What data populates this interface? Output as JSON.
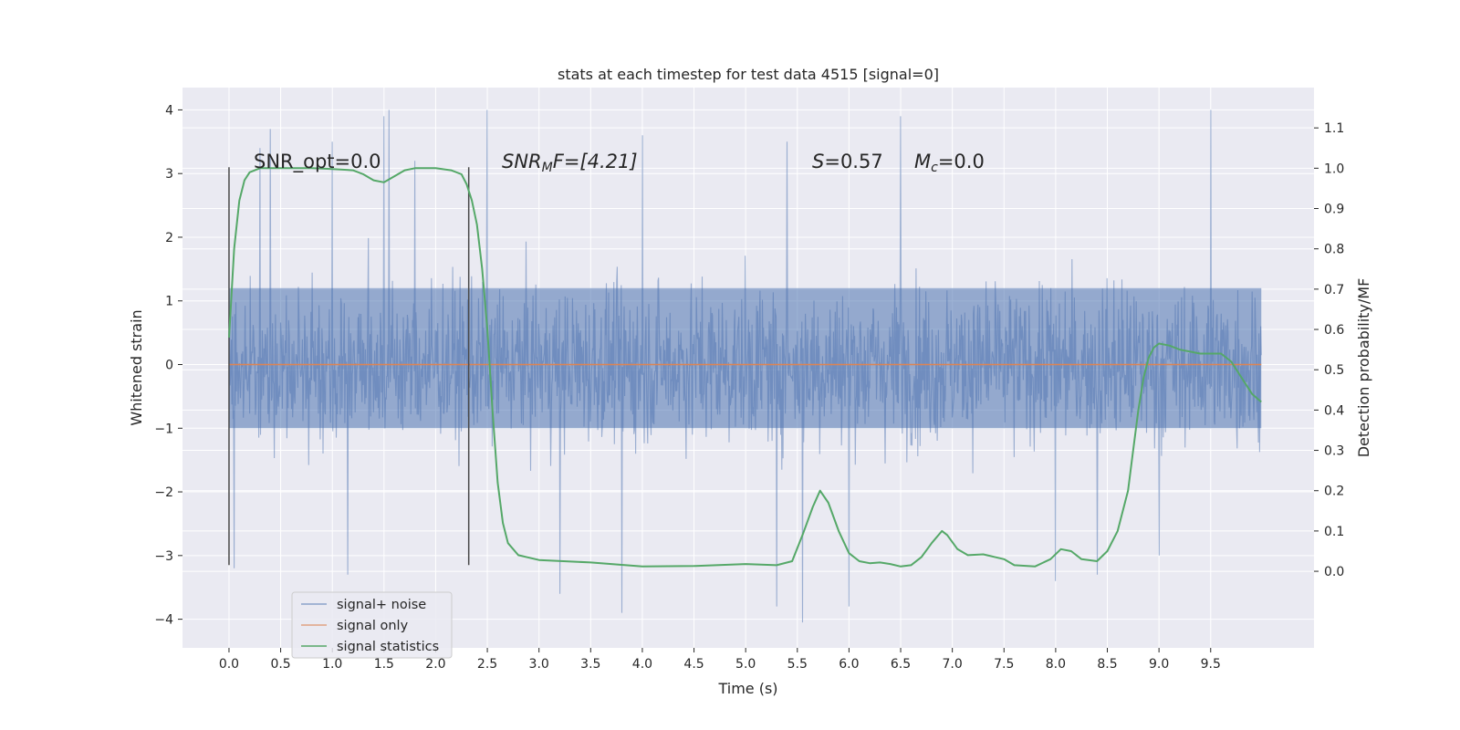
{
  "chart_data": {
    "type": "line",
    "title": "stats at each timestep for test data 4515 [signal=0]",
    "xlabel": "Time (s)",
    "ylabel": "Whitened strain",
    "y2label": "Detection probability/MF",
    "xlim": [
      -0.45,
      10.5
    ],
    "ylim": [
      -4.45,
      4.35
    ],
    "y2lim": [
      -0.19,
      1.2
    ],
    "x_ticks": [
      "0.0",
      "0.5",
      "1.0",
      "1.5",
      "2.0",
      "2.5",
      "3.0",
      "3.5",
      "4.0",
      "4.5",
      "5.0",
      "5.5",
      "6.0",
      "6.5",
      "7.0",
      "7.5",
      "8.0",
      "8.5",
      "9.0",
      "9.5"
    ],
    "x_tick_values": [
      0,
      0.5,
      1,
      1.5,
      2,
      2.5,
      3,
      3.5,
      4,
      4.5,
      5,
      5.5,
      6,
      6.5,
      7,
      7.5,
      8,
      8.5,
      9,
      9.5
    ],
    "y_ticks": [
      "−4",
      "−3",
      "−2",
      "−1",
      "0",
      "1",
      "2",
      "3",
      "4"
    ],
    "y_tick_values": [
      -4,
      -3,
      -2,
      -1,
      0,
      1,
      2,
      3,
      4
    ],
    "y2_ticks": [
      "0.0",
      "0.1",
      "0.2",
      "0.3",
      "0.4",
      "0.5",
      "0.6",
      "0.7",
      "0.8",
      "0.9",
      "1.0",
      "1.1"
    ],
    "y2_tick_values": [
      0,
      0.1,
      0.2,
      0.3,
      0.4,
      0.5,
      0.6,
      0.7,
      0.8,
      0.9,
      1.0,
      1.1
    ],
    "grid": true,
    "legend_position": "lower-left",
    "vlines": [
      0.0,
      2.32
    ],
    "vline_range": [
      -3.15,
      3.1
    ],
    "annotations": {
      "snr_opt": "SNR_opt=0.0",
      "snr_mf_main": "SNR",
      "snr_mf_sub": "M",
      "snr_mf_rest": "F=[4.21]",
      "s_sym": "S",
      "s_rest": "=0.57",
      "mc_main": "M",
      "mc_sub": "c",
      "mc_rest": "=0.0"
    },
    "series": [
      {
        "name": "signal+ noise",
        "color": "#4c72b0",
        "opacity": 0.5,
        "x_range": [
          0,
          9.99
        ],
        "core_band": [
          -1.0,
          1.2
        ],
        "typical_band": [
          -2.1,
          2.1
        ],
        "outlier_peaks": [
          [
            0.3,
            3.4
          ],
          [
            0.4,
            3.7
          ],
          [
            1.0,
            3.5
          ],
          [
            1.5,
            3.9
          ],
          [
            1.55,
            4.0
          ],
          [
            1.8,
            3.2
          ],
          [
            2.5,
            4.0
          ],
          [
            4.0,
            3.6
          ],
          [
            5.4,
            3.5
          ],
          [
            6.0,
            3.9
          ],
          [
            6.5,
            3.9
          ],
          [
            9.5,
            4.0
          ],
          [
            0.05,
            -3.2
          ],
          [
            1.15,
            -3.3
          ],
          [
            3.2,
            -3.6
          ],
          [
            3.8,
            -3.9
          ],
          [
            5.3,
            -3.8
          ],
          [
            5.55,
            -4.05
          ],
          [
            6.0,
            -3.8
          ],
          [
            8.0,
            -3.4
          ],
          [
            8.4,
            -3.3
          ],
          [
            9.0,
            -3.0
          ]
        ]
      },
      {
        "name": "signal only",
        "color": "#dd8452",
        "x": [
          0,
          9.99
        ],
        "y": [
          0,
          0
        ]
      },
      {
        "name": "signal statistics",
        "color": "#55a868",
        "axis": "right",
        "x": [
          0.0,
          0.05,
          0.1,
          0.15,
          0.2,
          0.3,
          0.4,
          0.5,
          0.6,
          0.8,
          1.0,
          1.2,
          1.3,
          1.4,
          1.5,
          1.6,
          1.7,
          1.8,
          2.0,
          2.15,
          2.25,
          2.3,
          2.35,
          2.4,
          2.45,
          2.5,
          2.55,
          2.6,
          2.65,
          2.7,
          2.8,
          3.0,
          3.5,
          4.0,
          4.5,
          5.0,
          5.3,
          5.45,
          5.55,
          5.65,
          5.72,
          5.8,
          5.9,
          6.0,
          6.1,
          6.2,
          6.3,
          6.4,
          6.5,
          6.6,
          6.7,
          6.8,
          6.9,
          6.95,
          7.05,
          7.15,
          7.3,
          7.5,
          7.6,
          7.8,
          7.95,
          8.05,
          8.15,
          8.25,
          8.4,
          8.5,
          8.6,
          8.7,
          8.75,
          8.8,
          8.85,
          8.9,
          8.95,
          9.0,
          9.1,
          9.2,
          9.3,
          9.4,
          9.5,
          9.6,
          9.7,
          9.8,
          9.9,
          9.99
        ],
        "y": [
          0.58,
          0.8,
          0.92,
          0.97,
          0.99,
          1.0,
          1.0,
          1.0,
          1.0,
          1.0,
          0.998,
          0.995,
          0.985,
          0.97,
          0.965,
          0.98,
          0.995,
          1.0,
          1.0,
          0.995,
          0.985,
          0.96,
          0.92,
          0.86,
          0.75,
          0.6,
          0.4,
          0.22,
          0.12,
          0.07,
          0.04,
          0.028,
          0.022,
          0.012,
          0.013,
          0.018,
          0.015,
          0.025,
          0.09,
          0.16,
          0.2,
          0.17,
          0.1,
          0.045,
          0.025,
          0.02,
          0.022,
          0.018,
          0.012,
          0.015,
          0.035,
          0.07,
          0.1,
          0.09,
          0.055,
          0.04,
          0.042,
          0.03,
          0.015,
          0.012,
          0.03,
          0.055,
          0.05,
          0.03,
          0.025,
          0.05,
          0.1,
          0.2,
          0.3,
          0.4,
          0.48,
          0.53,
          0.555,
          0.565,
          0.56,
          0.55,
          0.545,
          0.54,
          0.54,
          0.54,
          0.52,
          0.48,
          0.44,
          0.42
        ]
      }
    ]
  }
}
